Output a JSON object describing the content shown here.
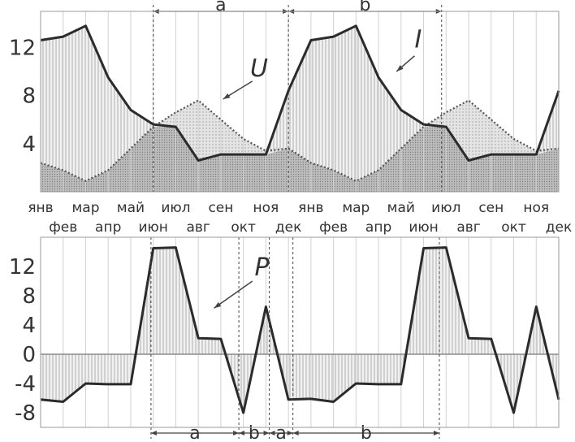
{
  "chart_data": [
    {
      "type": "area",
      "categories": [
        "янв",
        "фев",
        "мар",
        "апр",
        "май",
        "июн",
        "июл",
        "авг",
        "сен",
        "окт",
        "ноя",
        "дек",
        "янв",
        "фев",
        "мар",
        "апр",
        "май",
        "июн",
        "июл",
        "авг",
        "сен",
        "окт",
        "ноя",
        "дек"
      ],
      "series": [
        {
          "name": "I",
          "values": [
            12.6,
            12.9,
            13.8,
            9.5,
            6.8,
            5.6,
            5.4,
            2.6,
            3.1,
            3.1,
            3.1,
            8.4,
            12.6,
            12.9,
            13.8,
            9.5,
            6.8,
            5.6,
            5.4,
            2.6,
            3.1,
            3.1,
            3.1,
            8.4
          ]
        },
        {
          "name": "U",
          "values": [
            2.4,
            1.8,
            0.9,
            1.8,
            3.6,
            5.4,
            6.6,
            7.6,
            6.0,
            4.4,
            3.4,
            3.6,
            2.4,
            1.8,
            0.9,
            1.8,
            3.6,
            5.4,
            6.6,
            7.6,
            6.0,
            4.4,
            3.4,
            3.6
          ]
        }
      ],
      "yticks": [
        4,
        8,
        12
      ],
      "ylim": [
        0,
        15
      ],
      "intervals": [
        "a",
        "b"
      ],
      "grid": true
    },
    {
      "type": "area",
      "categories": [
        "янв",
        "фев",
        "мар",
        "апр",
        "май",
        "июн",
        "июл",
        "авг",
        "сен",
        "окт",
        "ноя",
        "дек",
        "янв",
        "фев",
        "мар",
        "апр",
        "май",
        "июн",
        "июл",
        "авг",
        "сен",
        "окт",
        "ноя",
        "дек"
      ],
      "series": [
        {
          "name": "P",
          "values": [
            -6.2,
            -6.5,
            -4.0,
            -4.1,
            -4.1,
            14.5,
            14.6,
            2.2,
            2.1,
            -8.0,
            6.5,
            -6.2,
            -6.1,
            -6.5,
            -4.0,
            -4.1,
            -4.1,
            14.5,
            14.6,
            2.2,
            2.1,
            -8.0,
            6.5,
            -6.2
          ]
        }
      ],
      "yticks": [
        12,
        8,
        4,
        0,
        -4,
        -8
      ],
      "ylim": [
        -10,
        16
      ],
      "intervals": [
        "a",
        "b",
        "a",
        "b"
      ],
      "grid": true
    }
  ]
}
